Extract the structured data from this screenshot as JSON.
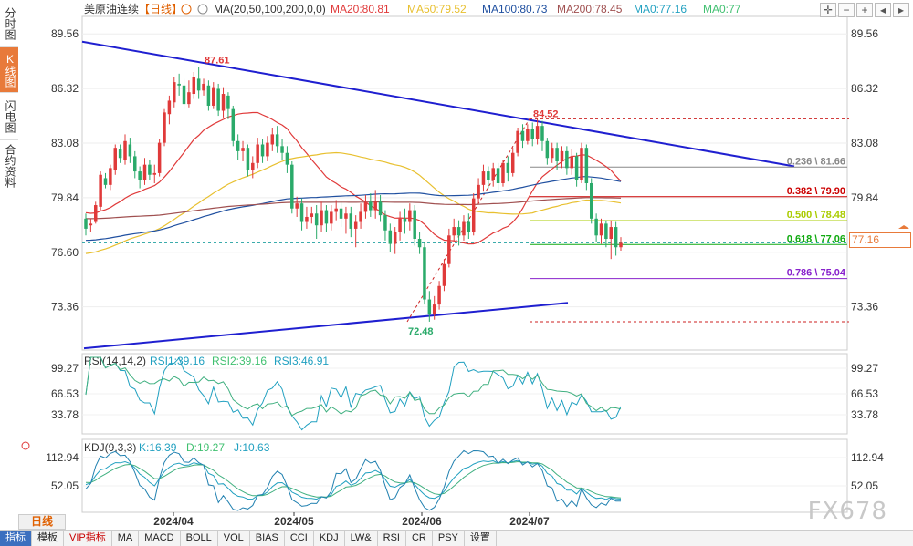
{
  "side_tabs": [
    {
      "label": "分时图",
      "active": false
    },
    {
      "label": "K线图",
      "active": true
    },
    {
      "label": "闪电图",
      "active": false
    },
    {
      "label": "合约资料",
      "active": false
    }
  ],
  "header": {
    "symbol": "美原油连续",
    "period": "【日线】",
    "ma_label": "MA(20,50,100,200,0,0)",
    "ma20": "MA20:80.81",
    "ma50": "MA50:79.52",
    "ma100": "MA100:80.73",
    "ma200": "MA200:78.45",
    "ma0a": "MA0:77.16",
    "ma0b": "MA0:77"
  },
  "rsi_header": {
    "label": "RSI(14,14,2)",
    "rsi1": "RSI1:39.16",
    "rsi2": "RSI2:39.16",
    "rsi3": "RSI3:46.91"
  },
  "kdj_header": {
    "label": "KDJ(9,3,3)",
    "k": "K:16.39",
    "d": "D:19.27",
    "j": "J:10.63"
  },
  "price_axis": {
    "left_ticks": [
      "89.56",
      "86.32",
      "83.08",
      "79.84",
      "76.60",
      "73.36"
    ],
    "right_ticks": [
      "89.56",
      "86.32",
      "83.08",
      "79.84",
      "73.36"
    ],
    "current_price": "77.16"
  },
  "rsi_axis": [
    "99.27",
    "66.53",
    "33.78"
  ],
  "kdj_axis": [
    "112.94",
    "52.05"
  ],
  "date_labels": [
    "2024/04",
    "2024/05",
    "2024/06",
    "2024/07"
  ],
  "annotations": {
    "high": "87.61",
    "low": "72.48",
    "recent_high": "84.52"
  },
  "fib_levels": [
    {
      "label": "0.236 \\ 81.66",
      "price": 81.66,
      "color": "#888888"
    },
    {
      "label": "0.382 \\ 79.90",
      "price": 79.9,
      "color": "#cc0000"
    },
    {
      "label": "0.500 \\ 78.48",
      "price": 78.48,
      "color": "#aacc00"
    },
    {
      "label": "0.618 \\ 77.06",
      "price": 77.06,
      "color": "#11aa11"
    },
    {
      "label": "0.786 \\ 75.04",
      "price": 75.04,
      "color": "#8822cc"
    }
  ],
  "toolbar": {
    "period": "日线",
    "items": [
      {
        "label": "指标",
        "active": true,
        "vip": false
      },
      {
        "label": "模板",
        "active": false,
        "vip": false
      },
      {
        "label": "VIP指标",
        "active": false,
        "vip": true
      },
      {
        "label": "MA",
        "active": false,
        "vip": false
      },
      {
        "label": "MACD",
        "active": false,
        "vip": false
      },
      {
        "label": "BOLL",
        "active": false,
        "vip": false
      },
      {
        "label": "VOL",
        "active": false,
        "vip": false
      },
      {
        "label": "BIAS",
        "active": false,
        "vip": false
      },
      {
        "label": "CCI",
        "active": false,
        "vip": false
      },
      {
        "label": "KDJ",
        "active": false,
        "vip": false
      },
      {
        "label": "LW&",
        "active": false,
        "vip": false
      },
      {
        "label": "RSI",
        "active": false,
        "vip": false
      },
      {
        "label": "CR",
        "active": false,
        "vip": false
      },
      {
        "label": "PSY",
        "active": false,
        "vip": false
      },
      {
        "label": "设置",
        "active": false,
        "vip": false
      }
    ]
  },
  "watermark": "FX678",
  "colors": {
    "up": "#e03a3a",
    "down": "#2aaa6a",
    "ma20": "#e03a3a",
    "ma50": "#e8c030",
    "ma100": "#2050a0",
    "ma200": "#a05050",
    "ma0a": "#20a0c0",
    "ma0b": "#40c070",
    "trend": "#1f1fd0"
  },
  "chart_data": {
    "type": "candlestick",
    "ylim": [
      70.8,
      90.6
    ],
    "candles": [
      [
        78.6,
        78.0,
        77.6,
        78.9
      ],
      [
        78.2,
        78.3,
        77.8,
        78.6
      ],
      [
        78.4,
        79.4,
        78.3,
        79.6
      ],
      [
        79.3,
        81.2,
        79.1,
        81.4
      ],
      [
        81.0,
        80.6,
        80.4,
        81.3
      ],
      [
        80.6,
        81.6,
        80.3,
        81.8
      ],
      [
        81.5,
        82.8,
        81.2,
        83.0
      ],
      [
        82.7,
        82.2,
        81.9,
        83.0
      ],
      [
        82.1,
        83.2,
        81.8,
        83.6
      ],
      [
        83.0,
        82.3,
        81.9,
        83.4
      ],
      [
        82.3,
        81.4,
        81.0,
        82.6
      ],
      [
        81.4,
        80.9,
        80.4,
        81.7
      ],
      [
        80.9,
        81.8,
        80.6,
        82.2
      ],
      [
        81.8,
        81.2,
        80.9,
        82.1
      ],
      [
        81.2,
        81.3,
        80.7,
        81.8
      ],
      [
        81.3,
        83.1,
        81.1,
        83.3
      ],
      [
        83.1,
        84.9,
        82.9,
        85.1
      ],
      [
        84.8,
        85.6,
        84.2,
        85.9
      ],
      [
        85.5,
        86.7,
        85.2,
        87.0
      ],
      [
        86.6,
        86.5,
        85.9,
        87.2
      ],
      [
        86.5,
        85.4,
        85.1,
        86.9
      ],
      [
        85.4,
        86.1,
        85.2,
        86.8
      ],
      [
        86.0,
        87.0,
        85.7,
        87.3
      ],
      [
        86.9,
        86.2,
        85.7,
        87.61
      ],
      [
        86.2,
        86.6,
        85.9,
        86.9
      ],
      [
        86.5,
        85.3,
        85.0,
        86.8
      ],
      [
        85.3,
        86.4,
        85.1,
        86.7
      ],
      [
        86.3,
        85.0,
        84.7,
        86.6
      ],
      [
        85.0,
        86.0,
        84.6,
        86.4
      ],
      [
        85.9,
        85.1,
        84.5,
        86.1
      ],
      [
        85.1,
        83.2,
        82.9,
        85.3
      ],
      [
        83.2,
        82.6,
        82.1,
        83.6
      ],
      [
        82.6,
        82.8,
        82.0,
        83.2
      ],
      [
        82.8,
        81.5,
        81.1,
        83.0
      ],
      [
        81.5,
        81.9,
        81.0,
        82.3
      ],
      [
        81.9,
        83.0,
        81.6,
        83.4
      ],
      [
        83.0,
        82.3,
        81.9,
        83.3
      ],
      [
        82.3,
        83.1,
        82.0,
        83.5
      ],
      [
        83.0,
        83.6,
        82.6,
        84.0
      ],
      [
        83.6,
        82.9,
        82.5,
        84.1
      ],
      [
        82.9,
        82.5,
        82.1,
        83.3
      ],
      [
        82.5,
        81.8,
        81.3,
        82.9
      ],
      [
        81.8,
        79.2,
        78.9,
        82.0
      ],
      [
        79.2,
        79.5,
        78.7,
        79.9
      ],
      [
        79.5,
        78.4,
        77.9,
        79.8
      ],
      [
        78.4,
        78.7,
        78.0,
        79.3
      ],
      [
        78.7,
        78.9,
        78.3,
        79.3
      ],
      [
        78.9,
        78.2,
        77.4,
        79.4
      ],
      [
        78.2,
        79.1,
        77.8,
        79.6
      ],
      [
        79.1,
        78.3,
        77.8,
        79.4
      ],
      [
        78.3,
        79.0,
        77.9,
        79.4
      ],
      [
        79.0,
        79.2,
        78.5,
        79.7
      ],
      [
        79.2,
        78.6,
        78.1,
        79.6
      ],
      [
        78.6,
        78.9,
        77.7,
        79.3
      ],
      [
        78.9,
        78.0,
        77.5,
        79.3
      ],
      [
        78.0,
        78.4,
        76.9,
        78.8
      ],
      [
        78.4,
        79.0,
        78.0,
        79.5
      ],
      [
        79.0,
        79.6,
        78.6,
        80.0
      ],
      [
        79.6,
        79.1,
        78.7,
        80.1
      ],
      [
        79.1,
        79.6,
        78.6,
        80.3
      ],
      [
        79.6,
        78.8,
        78.4,
        80.0
      ],
      [
        78.8,
        77.9,
        77.3,
        79.1
      ],
      [
        77.9,
        77.1,
        76.6,
        78.3
      ],
      [
        77.1,
        77.8,
        76.5,
        78.1
      ],
      [
        77.8,
        78.6,
        77.3,
        79.0
      ],
      [
        78.6,
        78.4,
        77.7,
        79.2
      ],
      [
        78.4,
        79.1,
        77.9,
        79.5
      ],
      [
        79.1,
        77.4,
        77.0,
        79.4
      ],
      [
        77.4,
        76.9,
        76.5,
        77.8
      ],
      [
        76.9,
        73.8,
        73.5,
        77.2
      ],
      [
        73.8,
        72.9,
        72.48,
        74.3
      ],
      [
        72.9,
        73.5,
        72.6,
        74.0
      ],
      [
        73.5,
        74.6,
        73.2,
        74.9
      ],
      [
        74.6,
        75.9,
        74.3,
        76.2
      ],
      [
        75.9,
        77.6,
        75.7,
        78.0
      ],
      [
        77.6,
        78.1,
        77.2,
        78.6
      ],
      [
        78.1,
        77.6,
        77.0,
        78.5
      ],
      [
        77.6,
        78.4,
        77.3,
        78.8
      ],
      [
        78.4,
        77.8,
        77.4,
        78.9
      ],
      [
        77.8,
        79.8,
        77.6,
        80.1
      ],
      [
        79.8,
        80.6,
        79.5,
        81.0
      ],
      [
        80.6,
        81.4,
        80.2,
        81.8
      ],
      [
        81.4,
        80.9,
        80.4,
        81.7
      ],
      [
        80.9,
        81.6,
        80.5,
        81.9
      ],
      [
        81.6,
        80.7,
        80.3,
        81.9
      ],
      [
        80.7,
        81.9,
        80.5,
        82.1
      ],
      [
        81.9,
        81.3,
        80.8,
        82.3
      ],
      [
        81.3,
        82.5,
        81.1,
        82.8
      ],
      [
        82.5,
        83.8,
        82.3,
        84.0
      ],
      [
        83.8,
        83.2,
        82.8,
        84.2
      ],
      [
        83.2,
        83.9,
        83.0,
        84.2
      ],
      [
        83.9,
        83.3,
        82.9,
        84.3
      ],
      [
        83.3,
        84.1,
        83.0,
        84.52
      ],
      [
        84.1,
        83.2,
        82.6,
        84.4
      ],
      [
        83.2,
        82.2,
        81.8,
        83.4
      ],
      [
        82.2,
        82.8,
        81.9,
        83.1
      ],
      [
        82.8,
        82.0,
        81.5,
        83.1
      ],
      [
        82.0,
        82.6,
        81.6,
        82.9
      ],
      [
        82.6,
        81.6,
        81.2,
        82.9
      ],
      [
        81.6,
        82.3,
        81.2,
        82.7
      ],
      [
        82.3,
        80.9,
        80.5,
        82.5
      ],
      [
        80.9,
        82.8,
        80.7,
        83.1
      ],
      [
        82.8,
        80.7,
        80.3,
        83.0
      ],
      [
        80.7,
        78.6,
        78.3,
        81.0
      ],
      [
        78.6,
        77.6,
        77.2,
        78.9
      ],
      [
        77.6,
        78.3,
        77.1,
        78.6
      ],
      [
        78.3,
        77.4,
        76.9,
        78.5
      ],
      [
        77.4,
        78.1,
        76.2,
        78.5
      ],
      [
        78.1,
        76.9,
        76.4,
        78.4
      ],
      [
        76.9,
        77.16,
        76.7,
        77.5
      ]
    ]
  }
}
